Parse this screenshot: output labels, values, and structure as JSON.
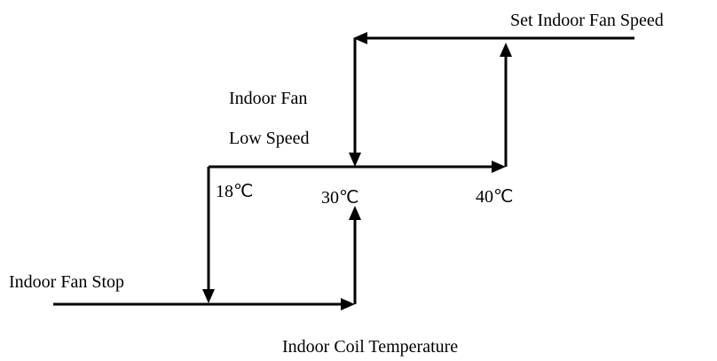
{
  "labels": {
    "set_speed": "Set Indoor Fan Speed",
    "low_speed_line1": "Indoor Fan",
    "low_speed_line2": "Low Speed",
    "stop": "Indoor Fan Stop",
    "axis": "Indoor Coil Temperature",
    "t18": "18℃",
    "t30": "30℃",
    "t40": "40℃"
  }
}
